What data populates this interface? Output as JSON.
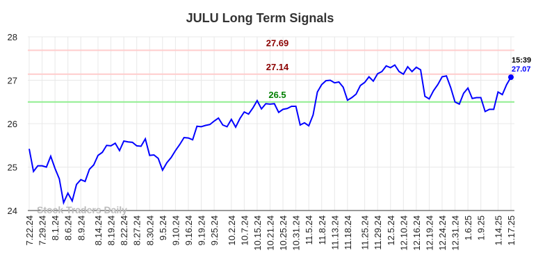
{
  "chart_data": {
    "type": "line",
    "title": "JULU Long Term Signals",
    "categories": [
      "7.22.24",
      null,
      null,
      "7.29.24",
      null,
      null,
      "8.1.24",
      null,
      null,
      "8.6.24",
      null,
      null,
      "8.9.24",
      null,
      null,
      null,
      "8.14.24",
      null,
      null,
      "8.19.24",
      null,
      null,
      "8.22.24",
      null,
      null,
      "8.27.24",
      null,
      null,
      "8.30.24",
      null,
      null,
      "9.5.24",
      null,
      null,
      "9.10.24",
      null,
      null,
      "9.16.24",
      null,
      null,
      "9.19.24",
      null,
      null,
      "9.25.24",
      null,
      null,
      null,
      "10.2.24",
      null,
      null,
      "10.7.24",
      null,
      null,
      "10.15.24",
      null,
      null,
      "10.21.24",
      null,
      null,
      "10.25.24",
      null,
      null,
      "10.31.24",
      null,
      null,
      "11.5.24",
      null,
      null,
      "11.8.24",
      null,
      null,
      "11.13.24",
      null,
      null,
      "11.18.24",
      null,
      null,
      null,
      "11.25.24",
      null,
      null,
      "11.29.24",
      null,
      null,
      "12.5.24",
      null,
      null,
      "12.10.24",
      null,
      null,
      "12.16.24",
      null,
      null,
      "12.19.24",
      null,
      null,
      "12.24.24",
      null,
      null,
      "12.31.24",
      null,
      null,
      "1.6.25",
      null,
      null,
      "1.9.25",
      null,
      null,
      null,
      "1.14.25",
      null,
      null,
      "1.17.25"
    ],
    "series": [
      {
        "color": "#0000ff",
        "values": [
          25.42,
          24.9,
          25.03,
          25.03,
          25.0,
          25.25,
          24.97,
          24.73,
          24.18,
          24.4,
          24.22,
          24.6,
          24.71,
          24.67,
          24.95,
          25.05,
          25.27,
          25.34,
          25.5,
          25.49,
          25.55,
          25.38,
          25.6,
          25.58,
          25.57,
          25.49,
          25.48,
          25.65,
          25.27,
          25.28,
          25.2,
          24.93,
          25.1,
          25.22,
          25.38,
          25.52,
          25.68,
          25.67,
          25.63,
          25.94,
          25.93,
          25.96,
          25.98,
          26.06,
          26.13,
          25.97,
          25.93,
          26.1,
          25.92,
          26.12,
          26.27,
          26.22,
          26.36,
          26.53,
          26.34,
          26.46,
          26.45,
          26.46,
          26.26,
          26.33,
          26.35,
          26.4,
          26.4,
          25.97,
          26.02,
          25.95,
          26.2,
          26.73,
          26.9,
          26.99,
          27.0,
          26.94,
          26.96,
          26.84,
          26.54,
          26.6,
          26.68,
          26.88,
          26.95,
          27.08,
          26.98,
          27.15,
          27.2,
          27.33,
          27.29,
          27.35,
          27.2,
          27.14,
          27.31,
          27.2,
          27.3,
          27.24,
          26.63,
          26.57,
          26.76,
          26.9,
          27.08,
          27.1,
          26.83,
          26.5,
          26.45,
          26.7,
          26.82,
          26.58,
          26.6,
          26.6,
          26.28,
          26.33,
          26.33,
          26.73,
          26.67,
          26.9,
          27.07
        ]
      }
    ],
    "hlines": [
      {
        "value": 27.69,
        "color": "#ffcccc",
        "label_color": "#8b0000"
      },
      {
        "value": 27.14,
        "color": "#ffcccc",
        "label_color": "#8b0000"
      },
      {
        "value": 26.5,
        "color": "#90ee90",
        "label_color": "#008000"
      }
    ],
    "last_time": "15:39",
    "watermark": "Stock Traders Daily",
    "ylim": [
      24,
      28
    ],
    "yticks": [
      24,
      25,
      26,
      27,
      28
    ],
    "grid": true
  }
}
